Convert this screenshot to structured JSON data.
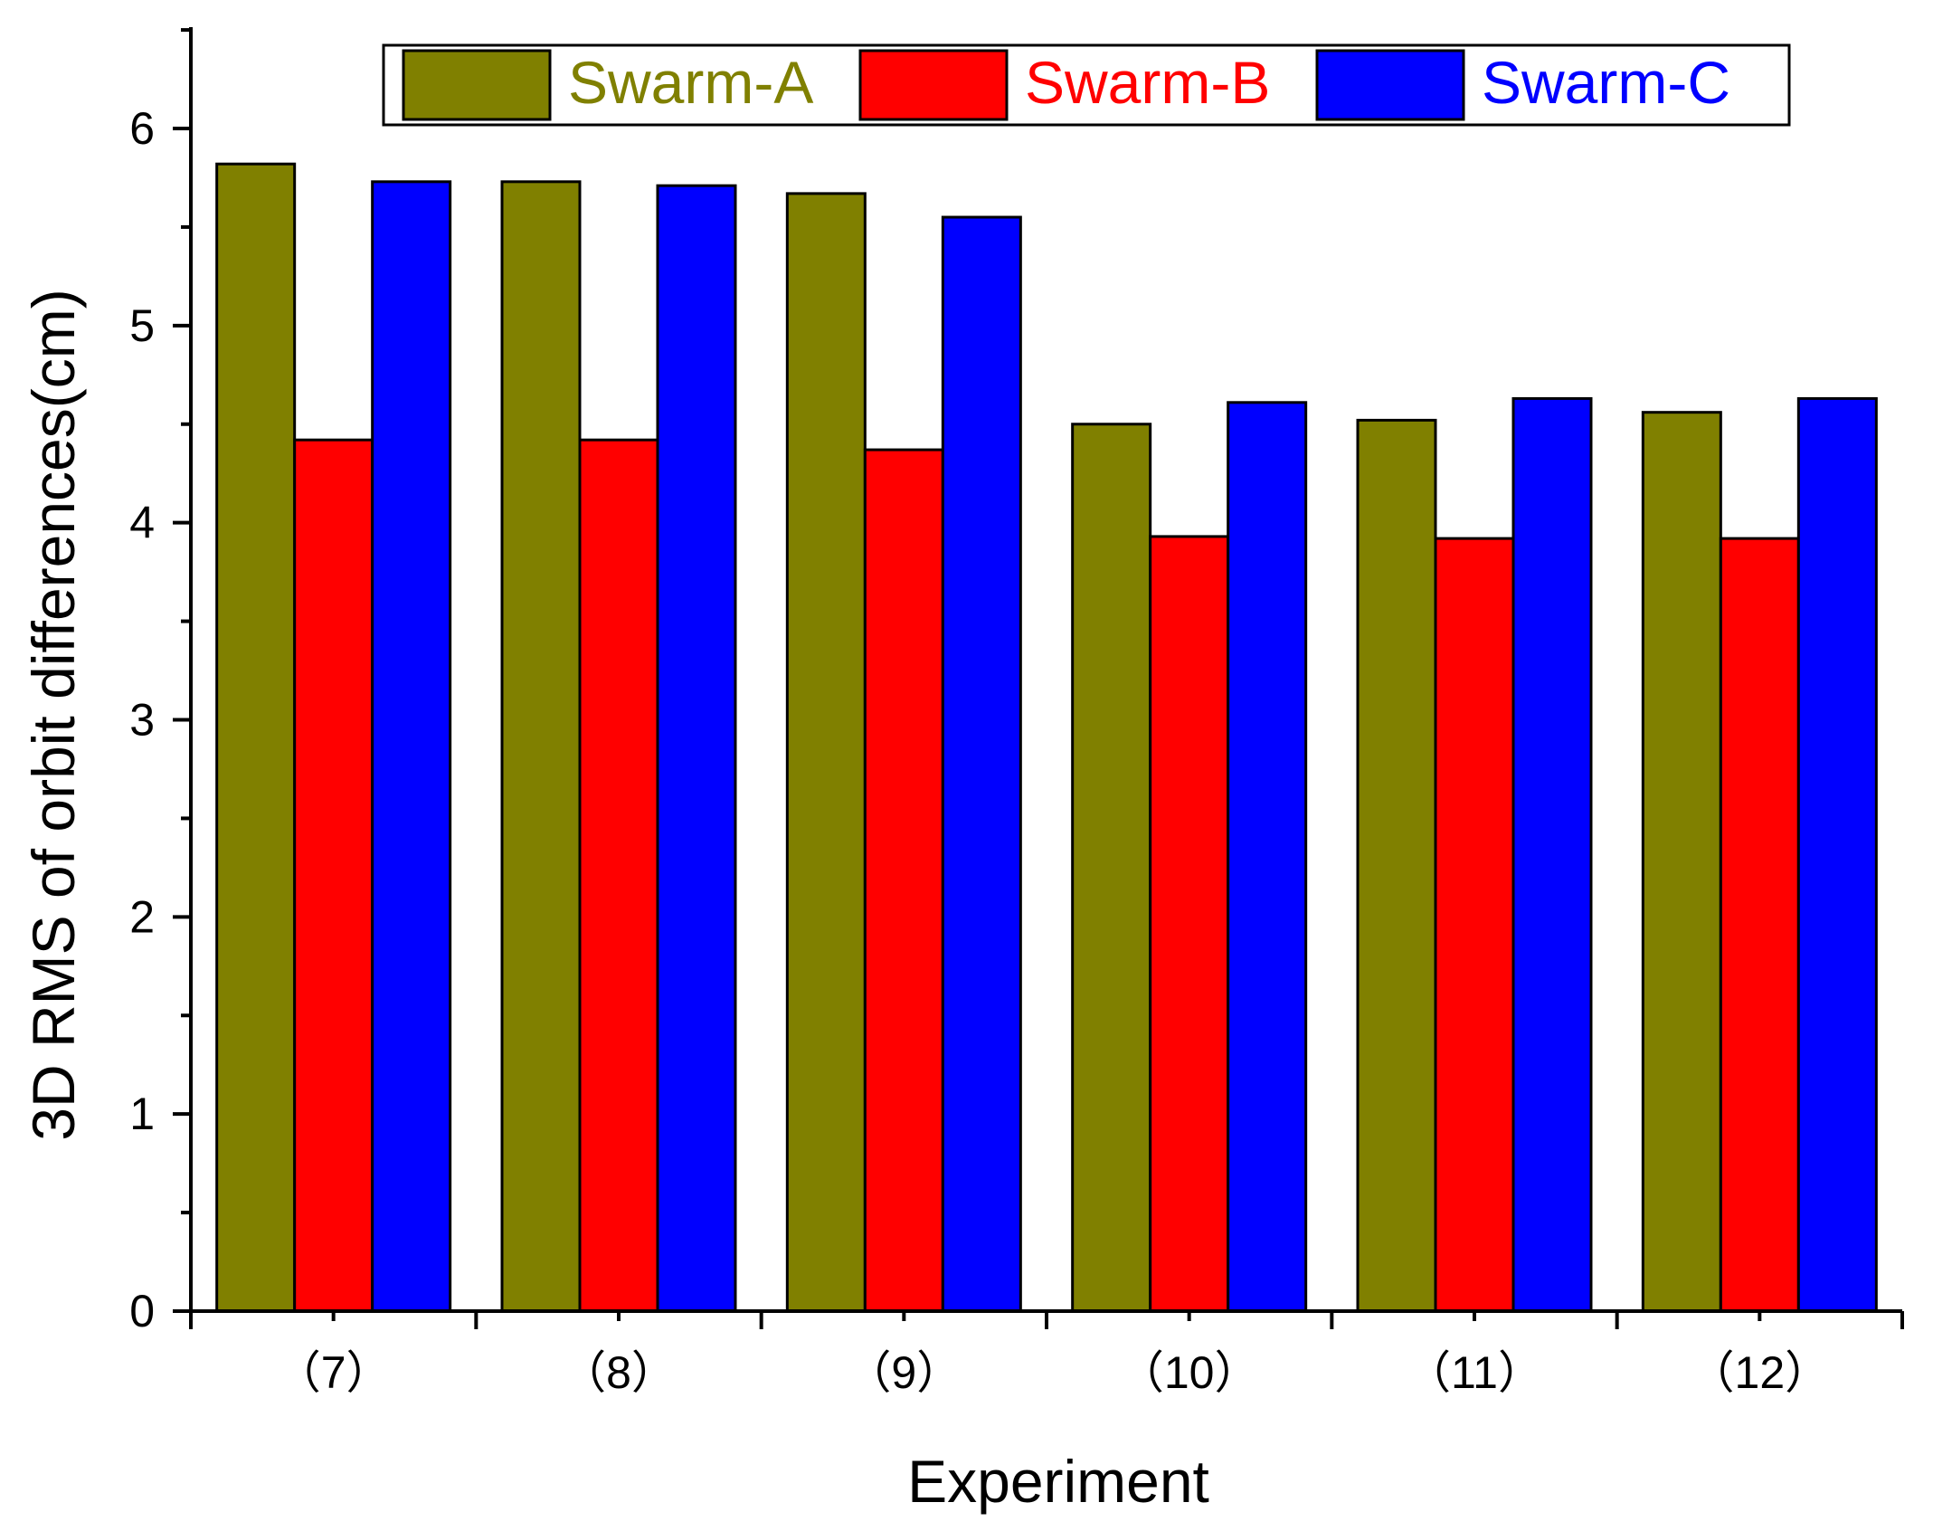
{
  "chart_data": {
    "type": "bar",
    "title": "",
    "xlabel": "Experiment",
    "ylabel": "3D RMS of orbit differences(cm)",
    "categories": [
      "（7）",
      "（8）",
      "（9）",
      "（10）",
      "（11）",
      "（12）"
    ],
    "series": [
      {
        "name": "Swarm-A",
        "color": "#808000",
        "values": [
          5.82,
          5.73,
          5.67,
          4.5,
          4.52,
          4.56
        ]
      },
      {
        "name": "Swarm-B",
        "color": "#ff0000",
        "values": [
          4.42,
          4.42,
          4.37,
          3.93,
          3.92,
          3.92
        ]
      },
      {
        "name": "Swarm-C",
        "color": "#0000ff",
        "values": [
          5.73,
          5.71,
          5.55,
          4.61,
          4.63,
          4.63
        ]
      }
    ],
    "ylim": [
      0,
      6.5
    ],
    "yticks": [
      0,
      1,
      2,
      3,
      4,
      5,
      6
    ],
    "y_minor_step": 0.5,
    "grid": false,
    "legend_position": "top-right"
  }
}
